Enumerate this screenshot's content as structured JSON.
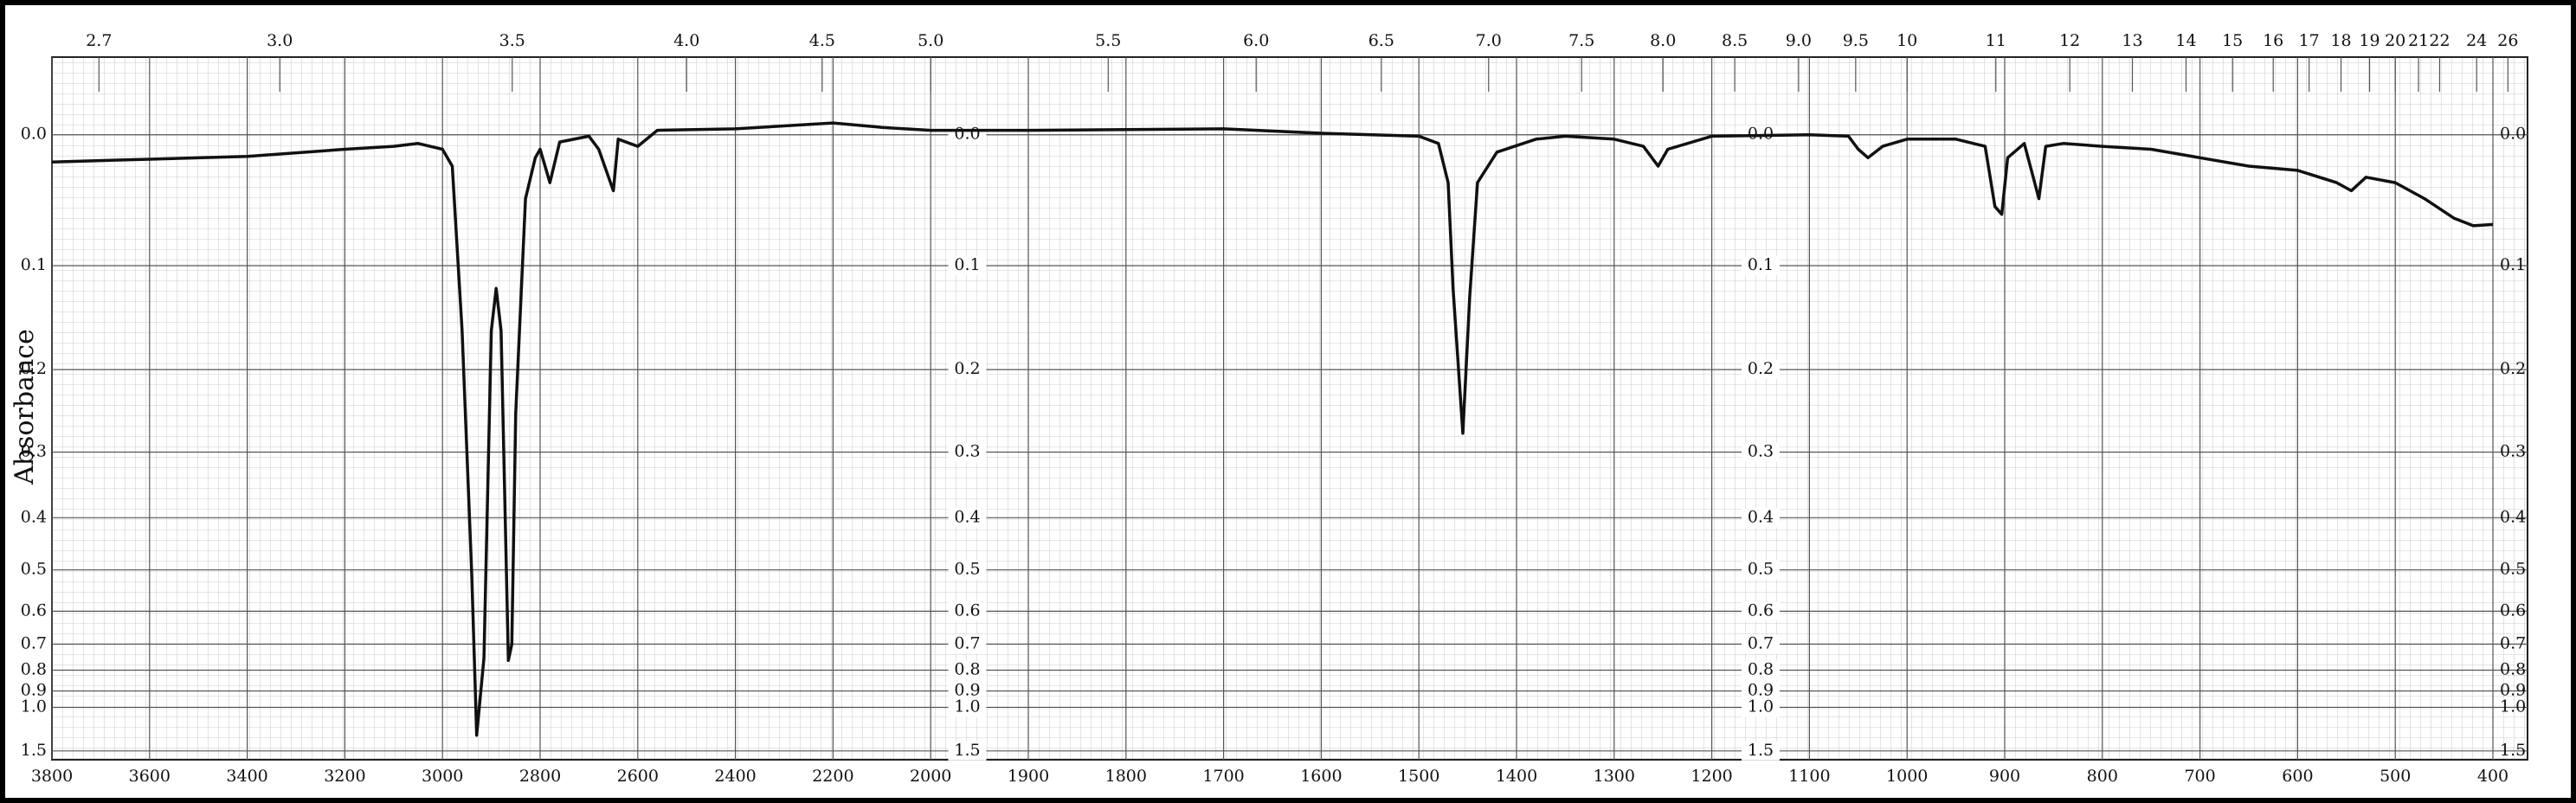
{
  "chart_data": {
    "type": "line",
    "ylabel": "Absorbance",
    "y_scale": "transmittance",
    "x_scale_break": 2000,
    "x_scale_ratio": 2,
    "grid": true,
    "xlim": [
      3800,
      400
    ],
    "xticks": [
      3800,
      3600,
      3400,
      3200,
      3000,
      2800,
      2600,
      2400,
      2200,
      2000,
      1900,
      1800,
      1700,
      1600,
      1500,
      1400,
      1300,
      1200,
      1100,
      1000,
      900,
      800,
      700,
      600,
      500,
      400
    ],
    "x2ticks": [
      2.7,
      {
        "value": 3,
        "label": "3.0"
      },
      3.5,
      {
        "value": 4,
        "label": "4.0"
      },
      4.5,
      {
        "value": 5,
        "label": "5.0"
      },
      5.5,
      {
        "value": 6,
        "label": "6.0"
      },
      6.5,
      {
        "value": 7,
        "label": "7.0"
      },
      7.5,
      {
        "value": 8,
        "label": "8.0"
      },
      8.5,
      {
        "value": 9,
        "label": "9.0"
      },
      9.5,
      10,
      11,
      12,
      13,
      14,
      15,
      16,
      17,
      18,
      19,
      20,
      21,
      22,
      24,
      26
    ],
    "ylim": [
      -0.05,
      1.75
    ],
    "yticks": [
      {
        "value": 0,
        "label": "0.0"
      },
      0.1,
      0.2,
      0.3,
      0.4,
      0.5,
      0.6,
      0.7,
      0.8,
      0.9,
      {
        "value": 1,
        "label": "1.0"
      },
      1.5
    ],
    "x": [
      3800,
      3600,
      3400,
      3200,
      3100,
      3050,
      3000,
      2980,
      2960,
      2940,
      2930,
      2915,
      2900,
      2890,
      2880,
      2865,
      2858,
      2850,
      2830,
      2810,
      2800,
      2780,
      2760,
      2700,
      2680,
      2650,
      2640,
      2600,
      2560,
      2400,
      2200,
      2100,
      2000,
      1900,
      1700,
      1600,
      1500,
      1480,
      1470,
      1465,
      1455,
      1448,
      1440,
      1420,
      1380,
      1350,
      1300,
      1270,
      1255,
      1245,
      1200,
      1100,
      1060,
      1050,
      1040,
      1025,
      1000,
      950,
      920,
      910,
      903,
      897,
      880,
      865,
      858,
      840,
      800,
      750,
      700,
      650,
      600,
      560,
      545,
      530,
      500,
      470,
      440,
      420,
      400
    ],
    "series": [
      {
        "color": "#111111",
        "values": [
          0.019,
          0.017,
          0.015,
          0.01,
          0.008,
          0.006,
          0.01,
          0.022,
          0.159,
          0.51,
          1.25,
          0.75,
          0.16,
          0.12,
          0.16,
          0.76,
          0.7,
          0.25,
          0.046,
          0.016,
          0.01,
          0.034,
          0.005,
          0.001,
          0.01,
          0.04,
          0.003,
          0.008,
          -0.003,
          -0.004,
          -0.008,
          -0.005,
          -0.003,
          -0.003,
          -0.004,
          -0.001,
          0.001,
          0.006,
          0.034,
          0.12,
          0.275,
          0.128,
          0.034,
          0.012,
          0.003,
          0.001,
          0.003,
          0.008,
          0.022,
          0.01,
          0.001,
          0,
          0.001,
          0.01,
          0.016,
          0.008,
          0.003,
          0.003,
          0.008,
          0.052,
          0.058,
          0.016,
          0.006,
          0.046,
          0.008,
          0.006,
          0.008,
          0.01,
          0.016,
          0.022,
          0.025,
          0.034,
          0.04,
          0.03,
          0.034,
          0.046,
          0.061,
          0.067,
          0.066
        ]
      }
    ]
  }
}
